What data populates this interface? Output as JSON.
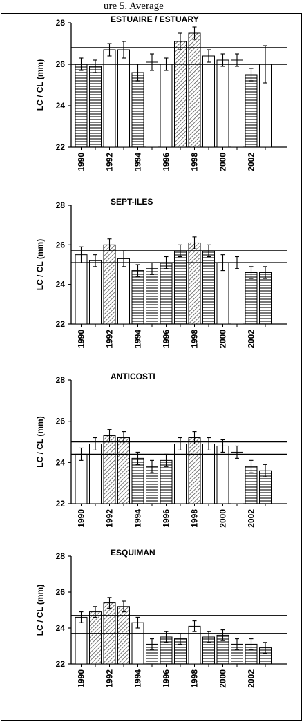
{
  "header_text": "ure 5. Average",
  "colors": {
    "bar_fill": "#ffffff",
    "hatch_horizontal": "#555555",
    "hatch_diagonal": "#555555",
    "axis": "#000000",
    "reference_line": "#000000"
  },
  "chart_data": [
    {
      "type": "bar",
      "title": "ESTUAIRE / ESTUARY",
      "ylabel": "LC / CL (mm)",
      "ylim": [
        22,
        28
      ],
      "yticks": [
        "22",
        "24",
        "26",
        "28"
      ],
      "xtick_labels": [
        "1990",
        "1992",
        "1994",
        "1996",
        "1998",
        "2000",
        "2002"
      ],
      "categories": [
        "1990",
        "1991",
        "1992",
        "1993",
        "1994",
        "1995",
        "1996",
        "1997",
        "1998",
        "1999",
        "2000",
        "2001",
        "2002",
        "2003"
      ],
      "values": [
        26.0,
        25.9,
        26.7,
        26.7,
        25.6,
        26.1,
        26.0,
        27.1,
        27.5,
        26.4,
        26.2,
        26.2,
        25.5,
        26.0
      ],
      "errors": [
        0.3,
        0.3,
        0.3,
        0.4,
        0.4,
        0.4,
        0.3,
        0.4,
        0.3,
        0.3,
        0.3,
        0.3,
        0.3,
        0.9
      ],
      "patterns": [
        "h",
        "h",
        "open",
        "open",
        "h",
        "open",
        "open",
        "d",
        "d",
        "open",
        "open",
        "open",
        "h",
        "open"
      ],
      "reference_lines": [
        26.8,
        26.0
      ]
    },
    {
      "type": "bar",
      "title": "SEPT-ILES",
      "ylabel": "LC / CL (mm)",
      "ylim": [
        22,
        28
      ],
      "yticks": [
        "22",
        "24",
        "26",
        "28"
      ],
      "xtick_labels": [
        "1990",
        "1992",
        "1994",
        "1996",
        "1998",
        "2000",
        "2002"
      ],
      "categories": [
        "1990",
        "1991",
        "1992",
        "1993",
        "1994",
        "1995",
        "1996",
        "1997",
        "1998",
        "1999",
        "2000",
        "2001",
        "2002",
        "2003"
      ],
      "values": [
        25.5,
        25.2,
        26.0,
        25.3,
        24.7,
        24.8,
        25.1,
        25.7,
        26.1,
        25.7,
        25.1,
        25.1,
        24.6,
        24.6
      ],
      "errors": [
        0.4,
        0.3,
        0.3,
        0.4,
        0.3,
        0.3,
        0.3,
        0.3,
        0.3,
        0.3,
        0.4,
        0.3,
        0.3,
        0.3
      ],
      "patterns": [
        "open",
        "open",
        "d",
        "open",
        "h",
        "h",
        "h",
        "h",
        "d",
        "h",
        "open",
        "open",
        "h",
        "h"
      ],
      "reference_lines": [
        25.7,
        25.1
      ]
    },
    {
      "type": "bar",
      "title": "ANTICOSTI",
      "ylabel": "LC / CL (mm)",
      "ylim": [
        22,
        28
      ],
      "yticks": [
        "22",
        "24",
        "26",
        "28"
      ],
      "xtick_labels": [
        "1990",
        "1992",
        "1994",
        "1996",
        "1998",
        "2000",
        "2002"
      ],
      "categories": [
        "1990",
        "1991",
        "1992",
        "1993",
        "1994",
        "1995",
        "1996",
        "1997",
        "1998",
        "1999",
        "2000",
        "2001",
        "2002",
        "2003"
      ],
      "values": [
        24.4,
        24.9,
        25.3,
        25.2,
        24.2,
        23.8,
        24.1,
        24.9,
        25.2,
        24.9,
        24.8,
        24.5,
        23.8,
        23.6
      ],
      "errors": [
        0.3,
        0.3,
        0.3,
        0.3,
        0.3,
        0.3,
        0.3,
        0.3,
        0.3,
        0.3,
        0.3,
        0.3,
        0.3,
        0.3
      ],
      "patterns": [
        "open",
        "open",
        "d",
        "d",
        "h",
        "h",
        "h",
        "open",
        "d",
        "open",
        "open",
        "open",
        "h",
        "h"
      ],
      "reference_lines": [
        25.0,
        24.4
      ]
    },
    {
      "type": "bar",
      "title": "ESQUIMAN",
      "ylabel": "LC / CL (mm)",
      "ylim": [
        22,
        28
      ],
      "yticks": [
        "22",
        "24",
        "26",
        "28"
      ],
      "xtick_labels": [
        "1990",
        "1992",
        "1994",
        "1996",
        "1998",
        "2000",
        "2002"
      ],
      "categories": [
        "1990",
        "1991",
        "1992",
        "1993",
        "1994",
        "1995",
        "1996",
        "1997",
        "1998",
        "1999",
        "2000",
        "2001",
        "2002",
        "2003"
      ],
      "values": [
        24.6,
        24.9,
        25.4,
        25.2,
        24.3,
        23.1,
        23.5,
        23.4,
        24.1,
        23.5,
        23.6,
        23.1,
        23.1,
        22.9
      ],
      "errors": [
        0.3,
        0.3,
        0.3,
        0.3,
        0.3,
        0.3,
        0.3,
        0.3,
        0.3,
        0.3,
        0.3,
        0.3,
        0.3,
        0.3
      ],
      "patterns": [
        "open",
        "d",
        "d",
        "d",
        "open",
        "h",
        "h",
        "h",
        "open",
        "h",
        "h",
        "h",
        "h",
        "h"
      ],
      "reference_lines": [
        24.7,
        23.7
      ]
    }
  ]
}
